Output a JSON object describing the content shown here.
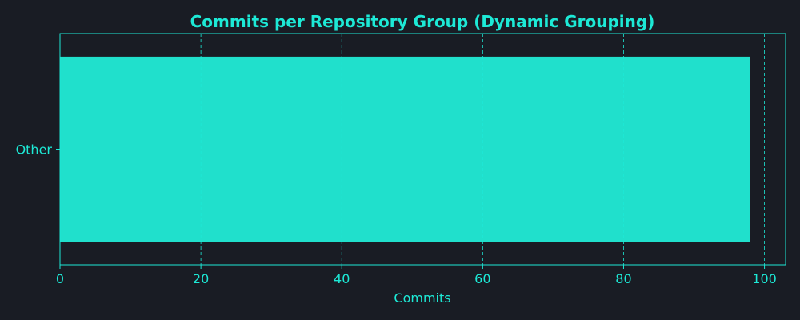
{
  "colors": {
    "background": "#191c24",
    "accent": "#1de9d6",
    "bar": "#20e0cc"
  },
  "chart_data": {
    "type": "bar",
    "orientation": "horizontal",
    "title": "Commits per Repository Group (Dynamic Grouping)",
    "xlabel": "Commits",
    "ylabel": "",
    "categories": [
      "Other"
    ],
    "values": [
      98
    ],
    "xlim": [
      0,
      103
    ],
    "xticks": [
      0,
      20,
      40,
      60,
      80,
      100
    ],
    "grid": {
      "x": true,
      "y": false,
      "style": "dashed"
    }
  }
}
